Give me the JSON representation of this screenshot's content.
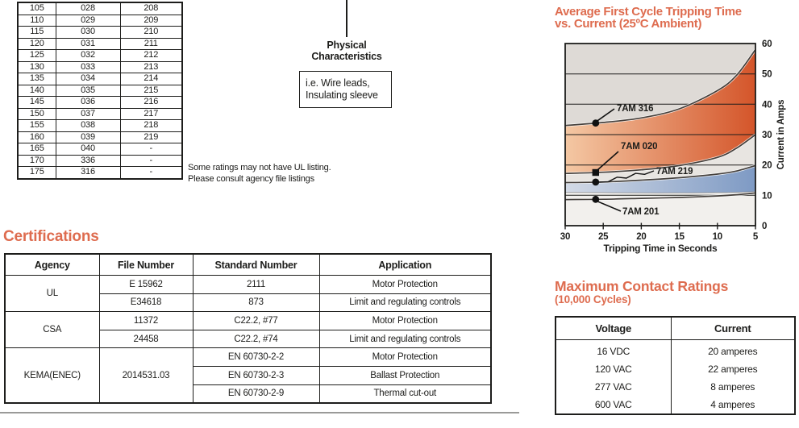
{
  "colors": {
    "accent": "#DE6C4F",
    "orange_band_from": "#F4C8A4",
    "orange_band_to": "#D4552A",
    "blue_band_from": "#D3DAE6",
    "blue_band_to": "#7E9AC4",
    "gray_top": "#DEDAD6",
    "gray_mid": "#E8E5E1",
    "bottom_band": "#F2F0ED"
  },
  "ratings_table": {
    "rows": [
      [
        "105",
        "028",
        "208"
      ],
      [
        "110",
        "029",
        "209"
      ],
      [
        "115",
        "030",
        "210"
      ],
      [
        "120",
        "031",
        "211"
      ],
      [
        "125",
        "032",
        "212"
      ],
      [
        "130",
        "033",
        "213"
      ],
      [
        "135",
        "034",
        "214"
      ],
      [
        "140",
        "035",
        "215"
      ],
      [
        "145",
        "036",
        "216"
      ],
      [
        "150",
        "037",
        "217"
      ],
      [
        "155",
        "038",
        "218"
      ],
      [
        "160",
        "039",
        "219"
      ],
      [
        "165",
        "040",
        "-"
      ],
      [
        "170",
        "336",
        "-"
      ],
      [
        "175",
        "316",
        "-"
      ]
    ]
  },
  "physical": {
    "label_line1": "Physical",
    "label_line2": "Characteristics",
    "box_line1": "i.e.  Wire leads,",
    "box_line2": "Insulating sleeve"
  },
  "notes": {
    "line1": "Some ratings may not have UL listing.",
    "line2": "Please consult agency file listings"
  },
  "certifications": {
    "heading": "Certifications",
    "columns": [
      "Agency",
      "File Number",
      "Standard Number",
      "Application"
    ],
    "groups": [
      {
        "agency": "UL",
        "rows": [
          {
            "file": "E 15962",
            "standard": "2111",
            "application": "Motor Protection"
          },
          {
            "file": "E34618",
            "standard": "873",
            "application": "Limit and regulating controls"
          }
        ]
      },
      {
        "agency": "CSA",
        "rows": [
          {
            "file": "11372",
            "standard": "C22.2, #77",
            "application": "Motor Protection"
          },
          {
            "file": "24458",
            "standard": "C22.2, #74",
            "application": "Limit and regulating controls"
          }
        ]
      },
      {
        "agency": "KEMA(ENEC)",
        "file": "2014531.03",
        "rows": [
          {
            "standard": "EN 60730-2-2",
            "application": "Motor Protection"
          },
          {
            "standard": "EN 60730-2-3",
            "application": "Ballast Protection"
          },
          {
            "standard": "EN 60730-2-9",
            "application": "Thermal cut-out"
          }
        ]
      }
    ]
  },
  "chart_data": {
    "type": "area",
    "title_line1": "Average First Cycle Tripping Time",
    "title_line2": "vs. Current (25ºC Ambient)",
    "xlabel": "Tripping Time in Seconds",
    "ylabel": "Current in Amps",
    "x_ticks": [
      30,
      25,
      20,
      15,
      10,
      5
    ],
    "x_range": [
      30,
      5
    ],
    "x_reversed": true,
    "ylim": [
      0,
      60
    ],
    "y_ticks": [
      0,
      10,
      20,
      30,
      40,
      50,
      60
    ],
    "grid": true,
    "legend_position": "inline-callouts",
    "callout_time_s": 26,
    "series": [
      {
        "name": "7AM 316",
        "marker": "circle",
        "x": [
          30,
          25,
          20,
          15,
          10,
          7.5,
          5
        ],
        "y": [
          33,
          34,
          35.5,
          38.5,
          44.5,
          49.5,
          58
        ]
      },
      {
        "name": "7AM 020",
        "marker": "square",
        "x": [
          30,
          25,
          20,
          15,
          10,
          7.5,
          5
        ],
        "y": [
          17.2,
          17.6,
          18.4,
          19.8,
          22.5,
          25.5,
          30
        ]
      },
      {
        "name": "7AM 219",
        "marker": "circle",
        "x": [
          30,
          25,
          20,
          15,
          10,
          7.5,
          5
        ],
        "y": [
          14.2,
          14.4,
          15,
          15.8,
          17,
          18,
          19.8
        ]
      },
      {
        "name": "7AM 201",
        "marker": "circle",
        "x": [
          30,
          25,
          20,
          15,
          10,
          7.5,
          5
        ],
        "y": [
          8.6,
          8.7,
          9,
          9.3,
          9.8,
          10.2,
          10.8
        ]
      }
    ]
  },
  "contact_ratings": {
    "heading": "Maximum Contact Ratings",
    "subheading": "(10,000 Cycles)",
    "columns": [
      "Voltage",
      "Current"
    ],
    "rows": [
      [
        "16 VDC",
        "20 amperes"
      ],
      [
        "120 VAC",
        "22 amperes"
      ],
      [
        "277 VAC",
        "8 amperes"
      ],
      [
        "600 VAC",
        "4 amperes"
      ]
    ]
  }
}
